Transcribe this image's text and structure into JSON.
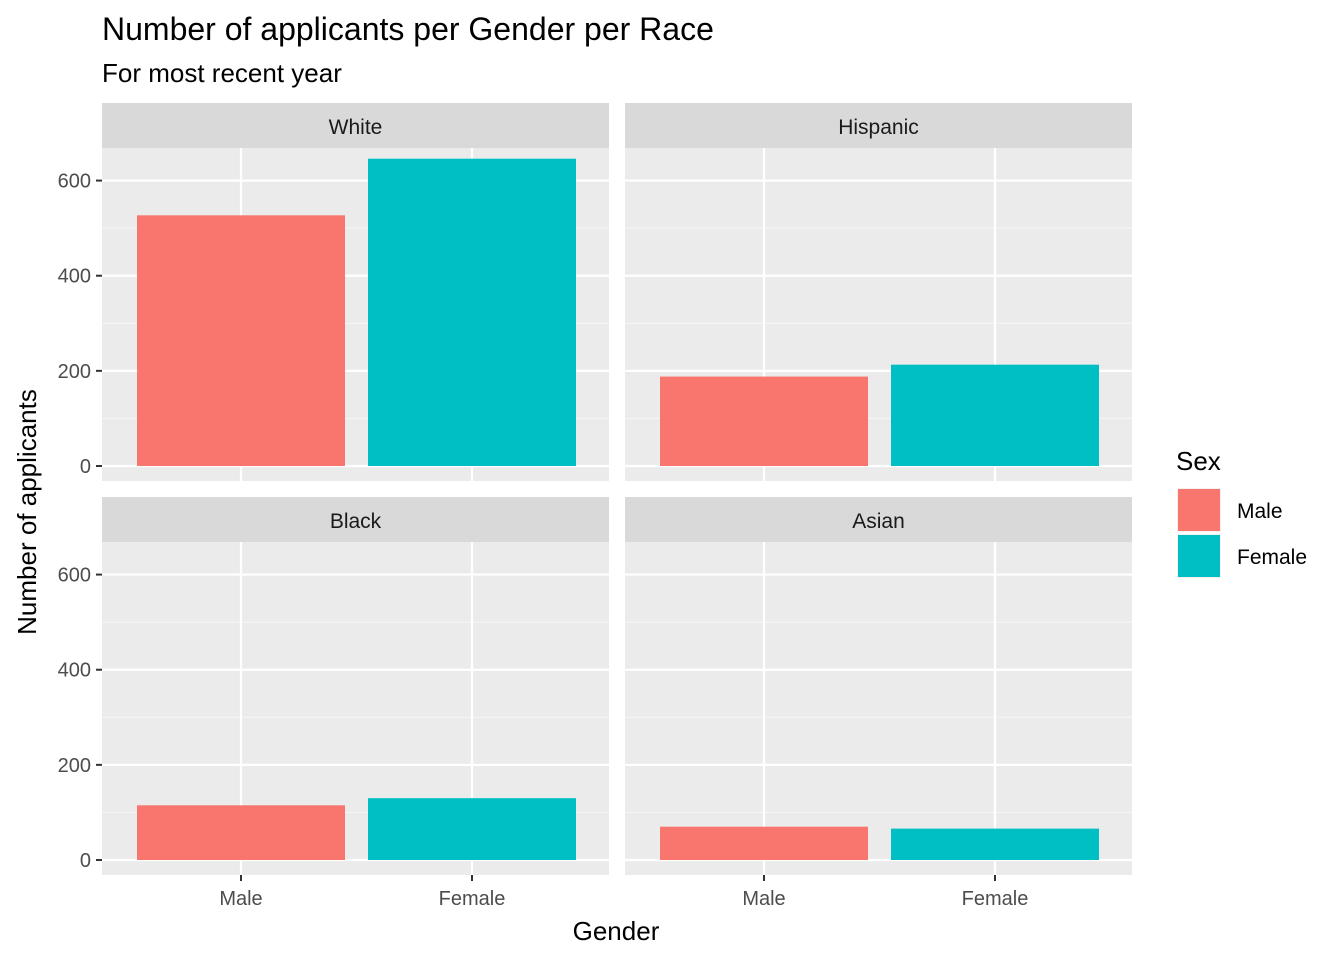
{
  "chart_data": {
    "type": "bar",
    "title": "Number of applicants per Gender per Race",
    "subtitle": "For most recent year",
    "xlabel": "Gender",
    "ylabel": "Number of applicants",
    "categories": [
      "Male",
      "Female"
    ],
    "ylim": [
      0,
      700
    ],
    "yticks": [
      0,
      200,
      400,
      600
    ],
    "grid": true,
    "legend": {
      "title": "Sex",
      "placement": "right",
      "entries": [
        {
          "label": "Male",
          "color": "#F8766D"
        },
        {
          "label": "Female",
          "color": "#00BFC4"
        }
      ]
    },
    "facets": [
      {
        "label": "White",
        "values": [
          527,
          646
        ]
      },
      {
        "label": "Hispanic",
        "values": [
          188,
          213
        ]
      },
      {
        "label": "Black",
        "values": [
          115,
          130
        ]
      },
      {
        "label": "Asian",
        "values": [
          70,
          66
        ]
      }
    ],
    "colors": {
      "panel_background": "#EBEBEB",
      "strip_background": "#D9D9D9",
      "grid": "#FFFFFF"
    }
  }
}
